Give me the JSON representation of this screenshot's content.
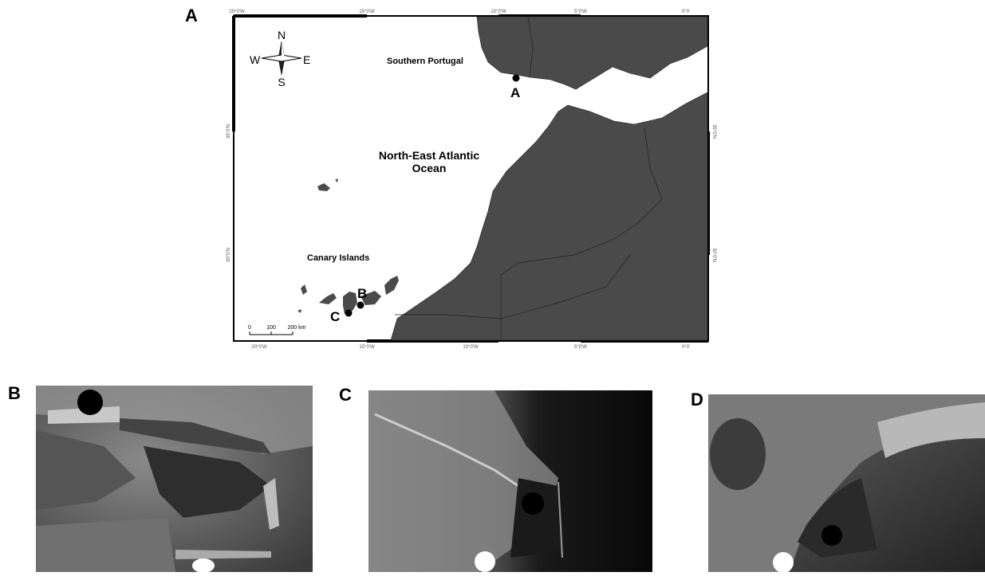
{
  "panel_labels": [
    "A",
    "B",
    "C",
    "D"
  ],
  "map": {
    "regions": [
      "Southern Portugal",
      "Canary Islands"
    ],
    "ocean": [
      "North-East Atlantic",
      "Ocean"
    ],
    "sites": [
      "A",
      "B",
      "C"
    ],
    "compass": [
      "N",
      "S",
      "E",
      "W"
    ],
    "scale_bar": [
      "0",
      "100",
      "200 km"
    ],
    "longitude_ticks": [
      "20°0'W",
      "15°0'W",
      "10°0'W",
      "5°0'W",
      "0°0'"
    ],
    "latitude_ticks": [
      "35°0'N",
      "30°0'N"
    ]
  }
}
